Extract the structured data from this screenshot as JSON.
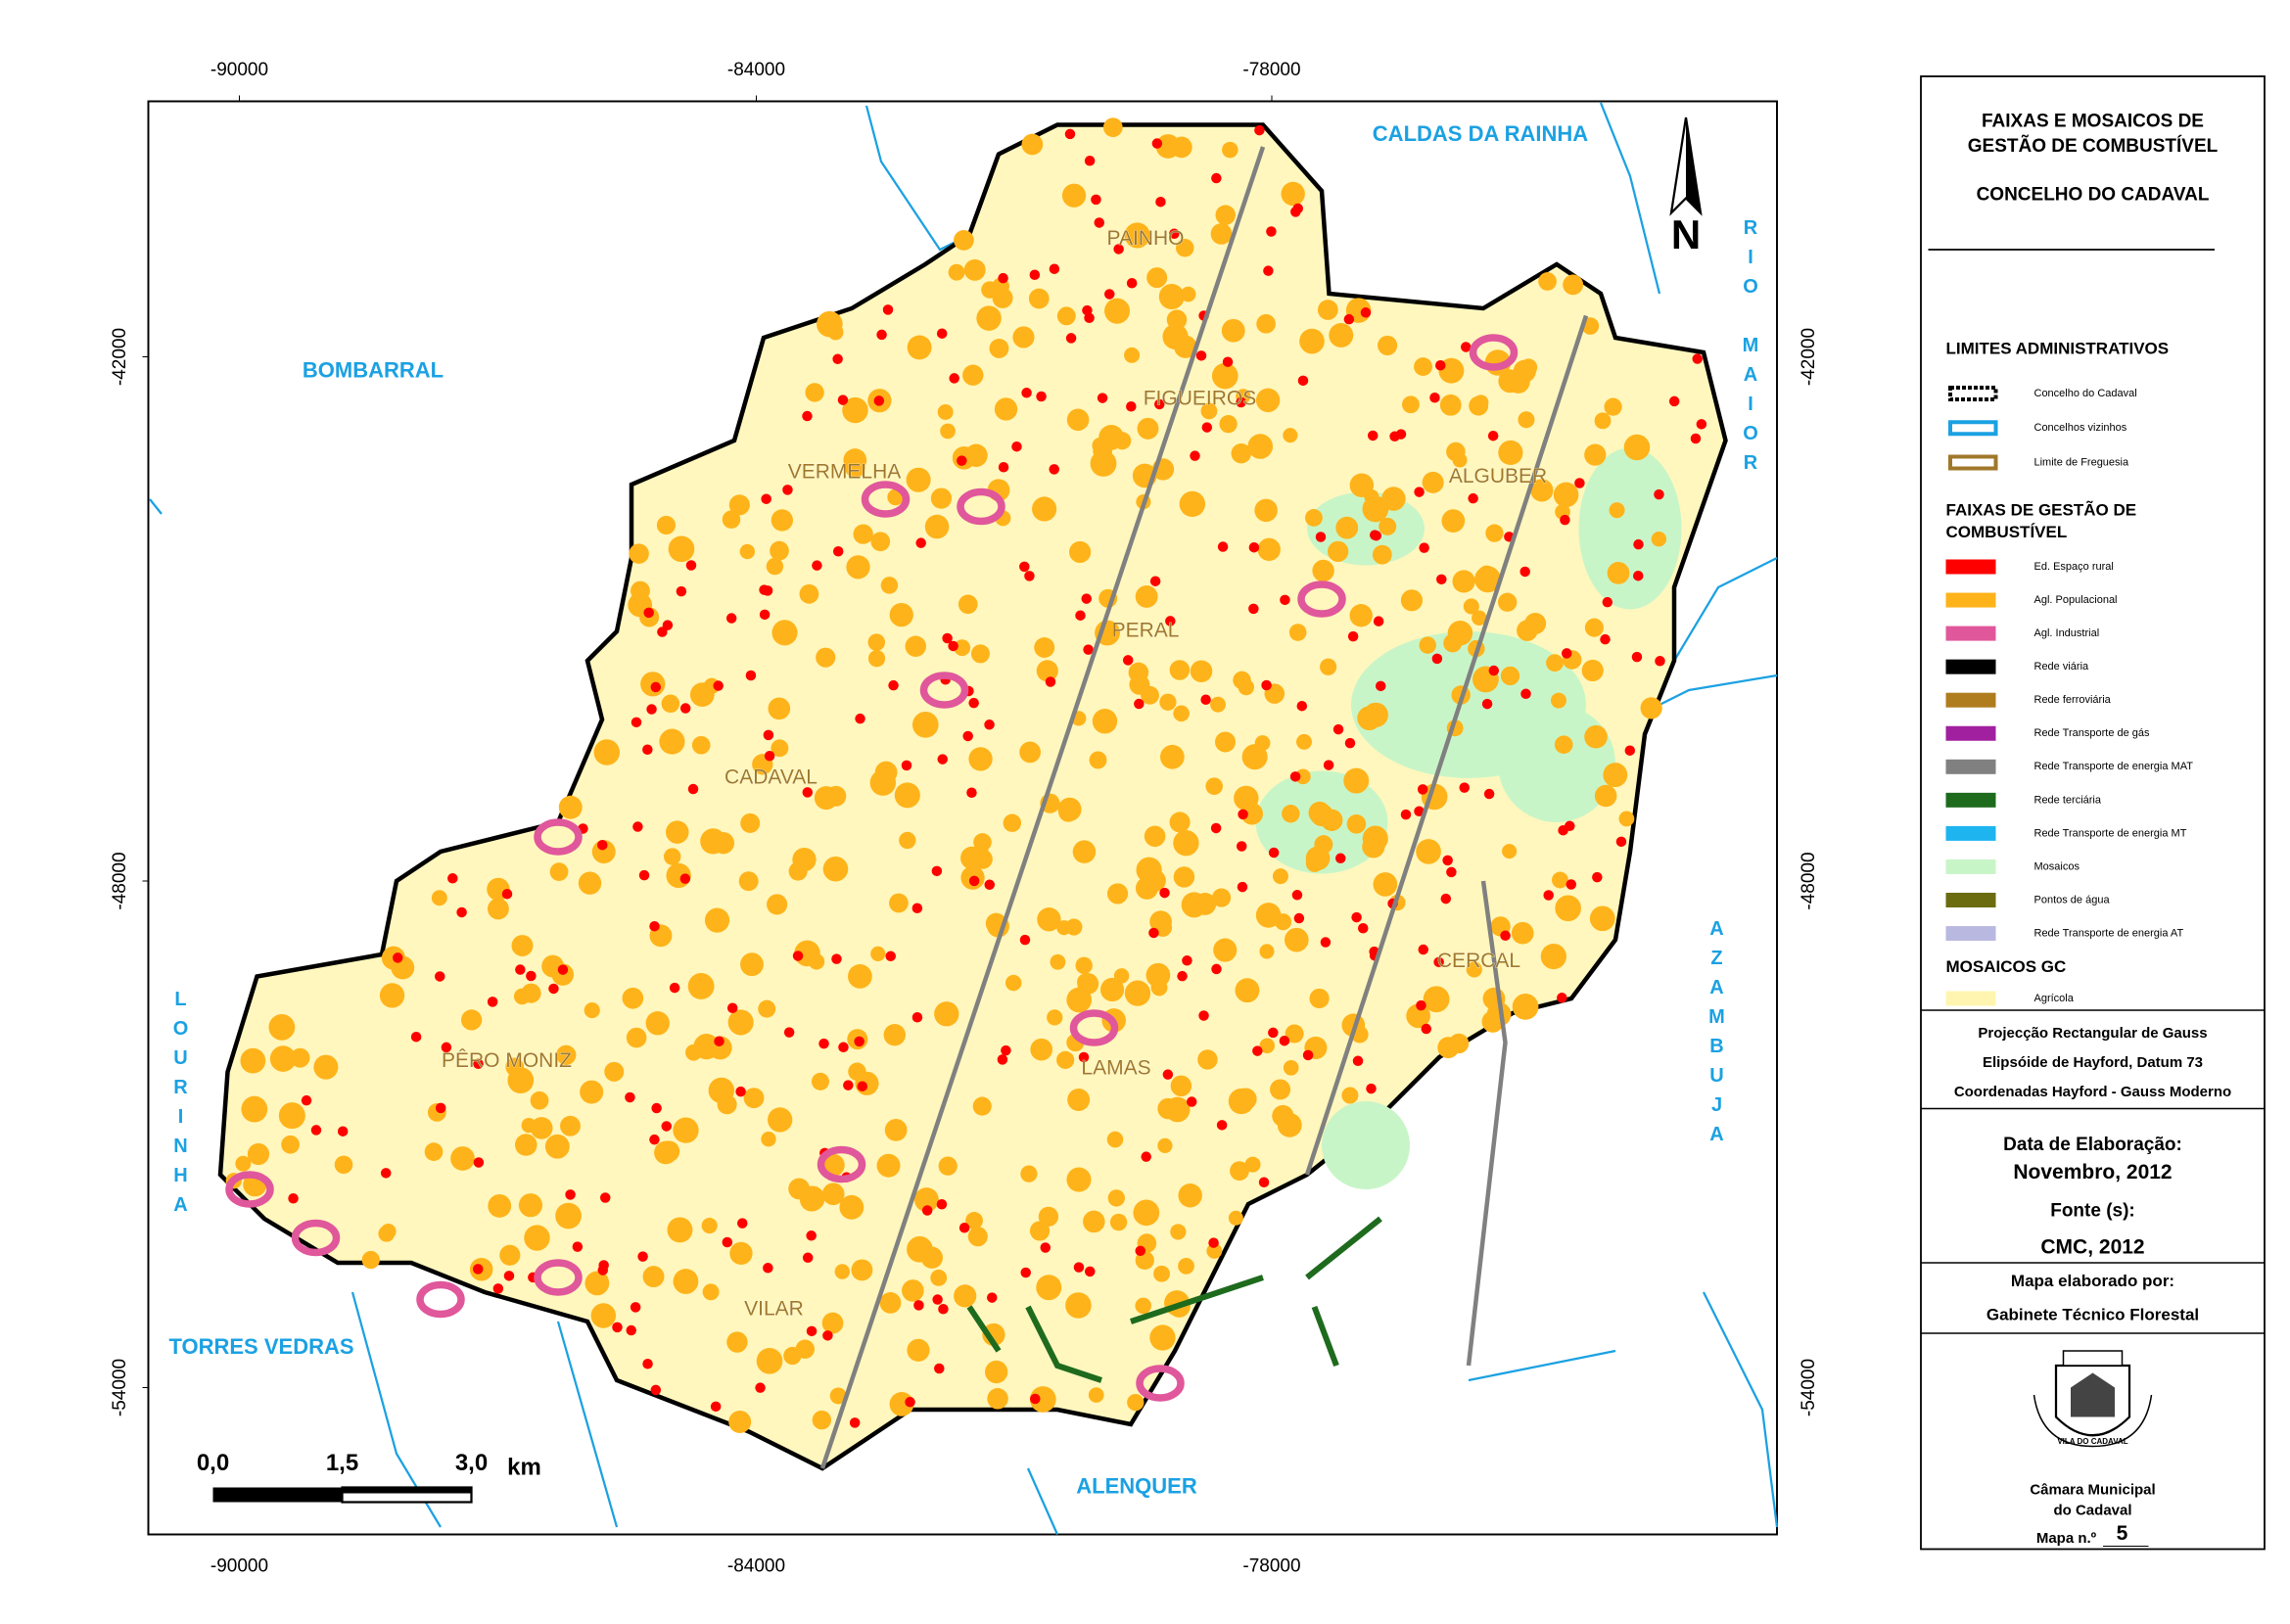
{
  "map": {
    "x_ticks": [
      -90000,
      -84000,
      -78000
    ],
    "y_ticks": [
      -42000,
      -48000,
      -54000
    ],
    "neighbors": [
      "CALDAS DA RAINHA",
      "BOMBARRAL",
      "TORRES VEDRAS",
      "ALENQUER"
    ],
    "vertical_neighbors": [
      "RIO MAIOR",
      "AZAMBUJA",
      "LOURINHA"
    ],
    "parishes": [
      "PAINHO",
      "FIGUEIROS",
      "VERMELHA",
      "ALGUBER",
      "PERAL",
      "CADAVAL",
      "CERCAL",
      "PÊRO MONIZ",
      "LAMAS",
      "VILAR"
    ],
    "north": "N",
    "scale_bar": {
      "labels": [
        "0,0",
        "1,5",
        "3,0"
      ],
      "unit": "km"
    }
  },
  "legend": {
    "title": [
      "FAIXAS E MOSAICOS DE",
      "GESTÃO DE COMBUSTÍVEL"
    ],
    "subtitle": "CONCELHO DO CADAVAL",
    "sections": [
      {
        "heading": [
          "LIMITES ADMINISTRATIVOS"
        ],
        "items": [
          {
            "label": "Concelho do Cadaval",
            "color": "#000000"
          },
          {
            "label": "Concelhos vizinhos",
            "color": "#1ba1e2"
          },
          {
            "label": "Limite de Freguesia",
            "color": "#a0782a"
          }
        ]
      },
      {
        "heading": [
          "FAIXAS DE GESTÃO DE",
          "COMBUSTÍVEL"
        ],
        "items": [
          {
            "label": "Ed. Espaço rural",
            "color": "#ff0000"
          },
          {
            "label": "Agl. Populacional",
            "color": "#ffb31a"
          },
          {
            "label": "Agl. Industrial",
            "color": "#e0579b"
          },
          {
            "label": "Rede viária",
            "color": "#000000"
          },
          {
            "label": "Rede ferroviária",
            "color": "#b07d1e"
          },
          {
            "label": "Rede Transporte de gás",
            "color": "#a020a0"
          },
          {
            "label": "Rede Transporte de energia MAT",
            "color": "#808080"
          },
          {
            "label": "Rede terciária",
            "color": "#1e6b1e"
          },
          {
            "label": "Rede Transporte de energia MT",
            "color": "#1eb4f0"
          },
          {
            "label": "Mosaicos",
            "color": "#c8f5c8"
          },
          {
            "label": "Pontos de água",
            "color": "#6b6b10"
          },
          {
            "label": "Rede Transporte de energia AT",
            "color": "#b8b8e0"
          }
        ]
      },
      {
        "heading": [
          "MOSAICOS GC"
        ],
        "items": [
          {
            "label": "Agrícola",
            "color": "#fff5b0"
          }
        ]
      }
    ]
  },
  "info": {
    "projection": [
      "Projecção Rectangular de Gauss",
      "Elipsóide de Hayford, Datum 73",
      "Coordenadas Hayford - Gauss Moderno"
    ],
    "date_label": "Data de Elaboração:",
    "date": "Novembro, 2012",
    "source_label": "Fonte (s):",
    "source": "CMC, 2012",
    "author_label": "Mapa elaborado por:",
    "author": "Gabinete Técnico Florestal",
    "crest_text": "VILA DO CADAVAL",
    "institution": [
      "Câmara Municipal",
      "do Cadaval"
    ],
    "map_number_label": "Mapa n.º",
    "map_number": "5"
  }
}
